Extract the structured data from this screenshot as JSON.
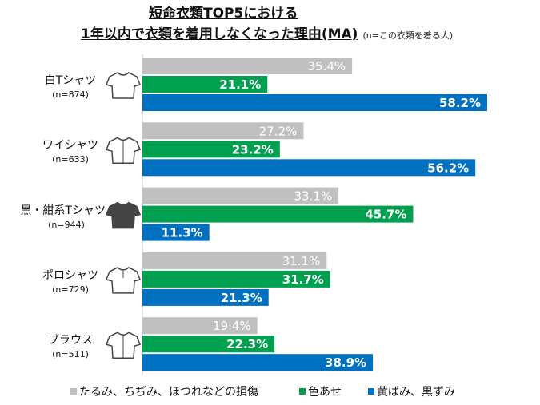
{
  "chart_data": {
    "type": "bar",
    "orientation": "horizontal",
    "title_line1": "短命衣類TOP5における",
    "title_line2": "1年以内で衣類を着用しなくなった理由(MA)",
    "subtitle": "(n=この衣類を着る人)",
    "categories": [
      {
        "label": "白Tシャツ",
        "n": "(n=874)",
        "icon": "t-shirt-icon"
      },
      {
        "label": "ワイシャツ",
        "n": "(n=633)",
        "icon": "dress-shirt-icon"
      },
      {
        "label": "黒・紺系Tシャツ",
        "n": "(n=944)",
        "icon": "dark-t-shirt-icon"
      },
      {
        "label": "ポロシャツ",
        "n": "(n=729)",
        "icon": "polo-shirt-icon"
      },
      {
        "label": "ブラウス",
        "n": "(n=511)",
        "icon": "blouse-icon"
      }
    ],
    "series": [
      {
        "name": "たるみ、ちぢみ、ほつれなどの損傷",
        "color": "#c0c0c0",
        "values": [
          35.4,
          27.2,
          33.1,
          31.1,
          19.4
        ]
      },
      {
        "name": "色あせ",
        "color": "#00a050",
        "values": [
          21.1,
          23.2,
          45.7,
          31.7,
          22.3
        ]
      },
      {
        "name": "黄ばみ、黒ずみ",
        "color": "#0070c0",
        "values": [
          58.2,
          56.2,
          11.3,
          21.3,
          38.9
        ]
      }
    ],
    "value_suffix": "%",
    "xlim": [
      0,
      60
    ],
    "grid": false,
    "legend_position": "bottom"
  }
}
